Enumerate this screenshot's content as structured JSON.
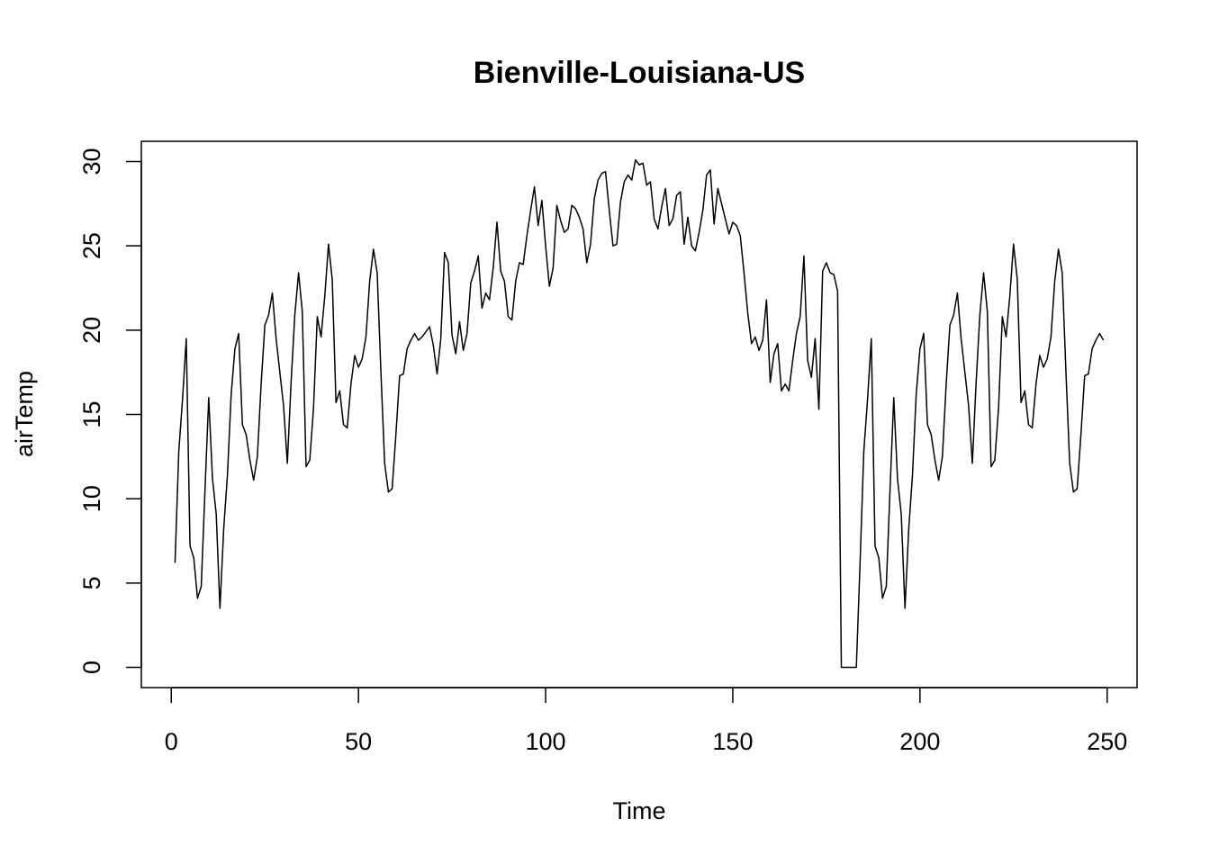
{
  "chart_data": {
    "type": "line",
    "title": "Bienville-Louisiana-US",
    "xlabel": "Time",
    "ylabel": "airTemp",
    "xlim": [
      -8,
      258
    ],
    "ylim": [
      -1.2,
      31.2
    ],
    "x_ticks": [
      0,
      50,
      100,
      150,
      200,
      250
    ],
    "y_ticks": [
      0,
      5,
      10,
      15,
      20,
      25,
      30
    ],
    "grid": false,
    "legend": "none",
    "line_color": "#000000",
    "x_start": 1,
    "values": [
      6.2,
      12.8,
      15.9,
      19.5,
      7.2,
      6.5,
      4.1,
      4.8,
      10.5,
      16.0,
      11.2,
      9.1,
      3.5,
      8.2,
      11.4,
      16.2,
      18.9,
      19.8,
      14.4,
      13.8,
      12.3,
      11.1,
      12.5,
      16.8,
      20.3,
      20.9,
      22.2,
      19.5,
      17.5,
      15.5,
      12.1,
      16.9,
      20.9,
      23.4,
      21.1,
      11.9,
      12.3,
      15.4,
      20.8,
      19.6,
      22.0,
      25.1,
      23.0,
      15.7,
      16.4,
      14.4,
      14.2,
      16.8,
      18.5,
      17.8,
      18.3,
      19.6,
      22.9,
      24.8,
      23.4,
      17.5,
      12.1,
      10.4,
      10.6,
      13.8,
      17.3,
      17.4,
      18.9,
      19.4,
      19.8,
      19.4,
      19.6,
      19.9,
      20.2,
      19.1,
      17.4,
      19.5,
      24.6,
      24.0,
      19.7,
      18.6,
      20.5,
      18.8,
      19.8,
      22.8,
      23.5,
      24.4,
      21.3,
      22.2,
      21.8,
      23.7,
      26.4,
      23.5,
      22.9,
      20.8,
      20.6,
      22.9,
      24.0,
      23.9,
      25.6,
      27.1,
      28.5,
      26.2,
      27.7,
      25.0,
      22.6,
      23.7,
      27.4,
      26.5,
      25.8,
      26.0,
      27.4,
      27.2,
      26.7,
      26.0,
      24.0,
      25.1,
      27.8,
      28.9,
      29.3,
      29.4,
      27.1,
      25.0,
      25.1,
      27.6,
      28.8,
      29.2,
      28.9,
      30.1,
      29.8,
      29.9,
      28.6,
      28.8,
      26.6,
      26.0,
      27.3,
      28.4,
      26.2,
      26.6,
      28.0,
      28.2,
      25.1,
      26.7,
      25.0,
      24.7,
      25.8,
      27.1,
      29.2,
      29.5,
      26.3,
      28.4,
      27.5,
      26.6,
      25.7,
      26.4,
      26.2,
      25.6,
      23.4,
      21.0,
      19.2,
      19.6,
      18.8,
      19.4,
      21.8,
      16.9,
      18.6,
      19.2,
      16.4,
      16.8,
      16.4,
      18.2,
      19.8,
      20.8,
      24.4,
      18.2,
      17.2,
      19.5,
      15.3,
      23.5,
      24.0,
      23.4,
      23.3,
      22.3,
      0.0,
      0.0,
      0.0,
      0.0,
      0.0,
      6.2,
      12.8,
      15.9,
      19.5,
      7.2,
      6.5,
      4.1,
      4.8,
      10.5,
      16.0,
      11.2,
      9.1,
      3.5,
      8.2,
      11.4,
      16.2,
      18.9,
      19.8,
      14.4,
      13.8,
      12.3,
      11.1,
      12.5,
      16.8,
      20.3,
      20.9,
      22.2,
      19.5,
      17.5,
      15.5,
      12.1,
      16.9,
      20.9,
      23.4,
      21.1,
      11.9,
      12.3,
      15.4,
      20.8,
      19.6,
      22.0,
      25.1,
      23.0,
      15.7,
      16.4,
      14.4,
      14.2,
      16.8,
      18.5,
      17.8,
      18.3,
      19.6,
      22.9,
      24.8,
      23.4,
      17.5,
      12.1,
      10.4,
      10.6,
      13.8,
      17.3,
      17.4,
      18.9,
      19.4,
      19.8,
      19.4
    ]
  }
}
